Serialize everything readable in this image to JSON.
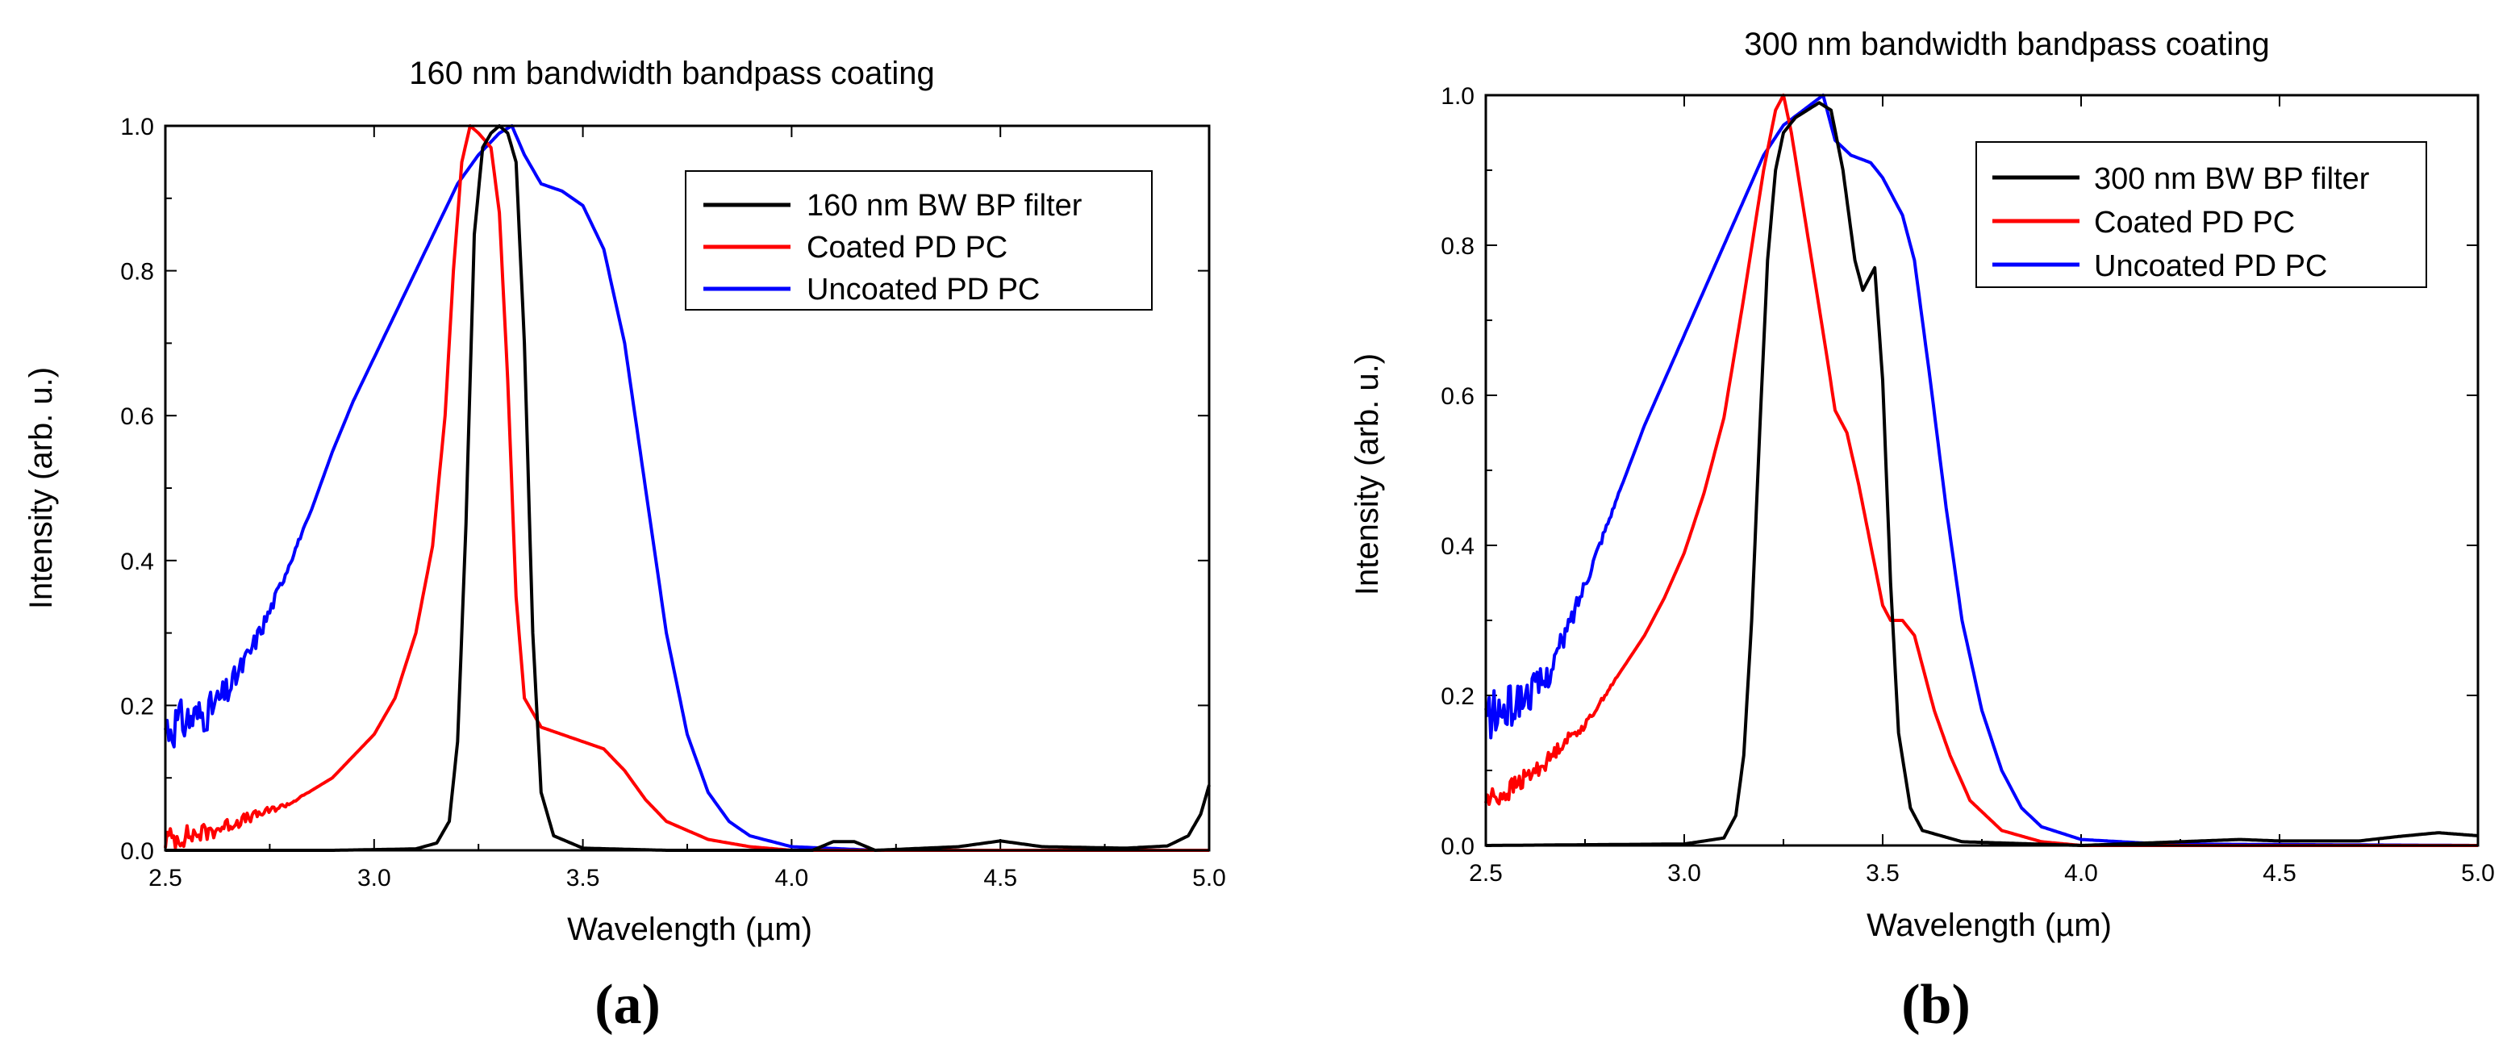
{
  "chart_data": [
    {
      "type": "line",
      "panel_caption": "(a)",
      "title": "160 nm bandwidth bandpass coating",
      "xlabel": "Wavelength (µm)",
      "ylabel": "Intensity (arb. u.)",
      "xlim": [
        2.5,
        5.0
      ],
      "ylim": [
        0.0,
        1.0
      ],
      "x_ticks": [
        "2.5",
        "3.0",
        "3.5",
        "4.0",
        "4.5",
        "5.0"
      ],
      "y_ticks": [
        "0.0",
        "0.2",
        "0.4",
        "0.6",
        "0.8",
        "1.0"
      ],
      "grid": false,
      "legend_position": "top-right",
      "series": [
        {
          "name": "160 nm BW BP filter",
          "color": "#000000",
          "points": [
            [
              2.5,
              0.0
            ],
            [
              2.9,
              0.0
            ],
            [
              3.1,
              0.002
            ],
            [
              3.15,
              0.01
            ],
            [
              3.18,
              0.04
            ],
            [
              3.2,
              0.15
            ],
            [
              3.22,
              0.45
            ],
            [
              3.24,
              0.85
            ],
            [
              3.26,
              0.97
            ],
            [
              3.28,
              0.99
            ],
            [
              3.3,
              1.0
            ],
            [
              3.32,
              0.99
            ],
            [
              3.34,
              0.95
            ],
            [
              3.36,
              0.7
            ],
            [
              3.38,
              0.3
            ],
            [
              3.4,
              0.08
            ],
            [
              3.43,
              0.02
            ],
            [
              3.5,
              0.003
            ],
            [
              3.7,
              0.0
            ],
            [
              4.05,
              0.0
            ],
            [
              4.1,
              0.012
            ],
            [
              4.15,
              0.012
            ],
            [
              4.2,
              0.0
            ],
            [
              4.4,
              0.005
            ],
            [
              4.5,
              0.013
            ],
            [
              4.6,
              0.005
            ],
            [
              4.8,
              0.003
            ],
            [
              4.9,
              0.006
            ],
            [
              4.95,
              0.02
            ],
            [
              4.98,
              0.05
            ],
            [
              5.0,
              0.09
            ]
          ]
        },
        {
          "name": "Coated PD PC",
          "color": "#ff0000",
          "points": [
            [
              2.5,
              0.015
            ],
            [
              2.6,
              0.025
            ],
            [
              2.7,
              0.045
            ],
            [
              2.8,
              0.065
            ],
            [
              2.9,
              0.1
            ],
            [
              3.0,
              0.16
            ],
            [
              3.05,
              0.21
            ],
            [
              3.1,
              0.3
            ],
            [
              3.14,
              0.42
            ],
            [
              3.17,
              0.6
            ],
            [
              3.19,
              0.8
            ],
            [
              3.21,
              0.95
            ],
            [
              3.23,
              1.0
            ],
            [
              3.25,
              0.99
            ],
            [
              3.28,
              0.97
            ],
            [
              3.3,
              0.88
            ],
            [
              3.32,
              0.65
            ],
            [
              3.34,
              0.35
            ],
            [
              3.36,
              0.21
            ],
            [
              3.4,
              0.17
            ],
            [
              3.5,
              0.15
            ],
            [
              3.55,
              0.14
            ],
            [
              3.6,
              0.11
            ],
            [
              3.65,
              0.07
            ],
            [
              3.7,
              0.04
            ],
            [
              3.8,
              0.015
            ],
            [
              3.9,
              0.005
            ],
            [
              4.0,
              0.0
            ],
            [
              5.0,
              0.0
            ]
          ]
        },
        {
          "name": "Uncoated PD PC",
          "color": "#0000ff",
          "points": [
            [
              2.5,
              0.17
            ],
            [
              2.55,
              0.18
            ],
            [
              2.6,
              0.19
            ],
            [
              2.65,
              0.22
            ],
            [
              2.7,
              0.27
            ],
            [
              2.75,
              0.33
            ],
            [
              2.8,
              0.4
            ],
            [
              2.85,
              0.47
            ],
            [
              2.9,
              0.55
            ],
            [
              2.95,
              0.62
            ],
            [
              3.0,
              0.68
            ],
            [
              3.05,
              0.74
            ],
            [
              3.1,
              0.8
            ],
            [
              3.15,
              0.86
            ],
            [
              3.2,
              0.92
            ],
            [
              3.25,
              0.96
            ],
            [
              3.3,
              0.99
            ],
            [
              3.33,
              1.0
            ],
            [
              3.36,
              0.96
            ],
            [
              3.4,
              0.92
            ],
            [
              3.45,
              0.91
            ],
            [
              3.5,
              0.89
            ],
            [
              3.55,
              0.83
            ],
            [
              3.6,
              0.7
            ],
            [
              3.65,
              0.5
            ],
            [
              3.7,
              0.3
            ],
            [
              3.75,
              0.16
            ],
            [
              3.8,
              0.08
            ],
            [
              3.85,
              0.04
            ],
            [
              3.9,
              0.02
            ],
            [
              4.0,
              0.005
            ],
            [
              4.2,
              0.0
            ],
            [
              5.0,
              0.0
            ]
          ]
        }
      ]
    },
    {
      "type": "line",
      "panel_caption": "(b)",
      "title": "300 nm bandwidth bandpass coating",
      "xlabel": "Wavelength (µm)",
      "ylabel": "Intensity (arb. u.)",
      "xlim": [
        2.5,
        5.0
      ],
      "ylim": [
        0.0,
        1.0
      ],
      "x_ticks": [
        "2.5",
        "3.0",
        "3.5",
        "4.0",
        "4.5",
        "5.0"
      ],
      "y_ticks": [
        "0.0",
        "0.2",
        "0.4",
        "0.6",
        "0.8",
        "1.0"
      ],
      "grid": false,
      "legend_position": "top-right",
      "series": [
        {
          "name": "300 nm BW BP filter",
          "color": "#000000",
          "points": [
            [
              2.5,
              0.0
            ],
            [
              3.0,
              0.002
            ],
            [
              3.1,
              0.01
            ],
            [
              3.13,
              0.04
            ],
            [
              3.15,
              0.12
            ],
            [
              3.17,
              0.3
            ],
            [
              3.19,
              0.55
            ],
            [
              3.21,
              0.78
            ],
            [
              3.23,
              0.9
            ],
            [
              3.25,
              0.95
            ],
            [
              3.28,
              0.97
            ],
            [
              3.31,
              0.98
            ],
            [
              3.34,
              0.99
            ],
            [
              3.37,
              0.98
            ],
            [
              3.4,
              0.9
            ],
            [
              3.43,
              0.78
            ],
            [
              3.45,
              0.74
            ],
            [
              3.48,
              0.77
            ],
            [
              3.5,
              0.62
            ],
            [
              3.52,
              0.35
            ],
            [
              3.54,
              0.15
            ],
            [
              3.57,
              0.05
            ],
            [
              3.6,
              0.02
            ],
            [
              3.7,
              0.005
            ],
            [
              4.0,
              0.0
            ],
            [
              4.4,
              0.008
            ],
            [
              4.5,
              0.006
            ],
            [
              4.7,
              0.006
            ],
            [
              4.8,
              0.012
            ],
            [
              4.9,
              0.017
            ],
            [
              5.0,
              0.013
            ]
          ]
        },
        {
          "name": "Coated PD PC",
          "color": "#ff0000",
          "points": [
            [
              2.5,
              0.06
            ],
            [
              2.55,
              0.07
            ],
            [
              2.6,
              0.09
            ],
            [
              2.65,
              0.11
            ],
            [
              2.7,
              0.14
            ],
            [
              2.75,
              0.16
            ],
            [
              2.8,
              0.2
            ],
            [
              2.85,
              0.24
            ],
            [
              2.9,
              0.28
            ],
            [
              2.95,
              0.33
            ],
            [
              3.0,
              0.39
            ],
            [
              3.05,
              0.47
            ],
            [
              3.1,
              0.57
            ],
            [
              3.15,
              0.73
            ],
            [
              3.2,
              0.9
            ],
            [
              3.23,
              0.98
            ],
            [
              3.25,
              1.0
            ],
            [
              3.27,
              0.95
            ],
            [
              3.3,
              0.85
            ],
            [
              3.33,
              0.75
            ],
            [
              3.36,
              0.65
            ],
            [
              3.38,
              0.58
            ],
            [
              3.41,
              0.55
            ],
            [
              3.44,
              0.48
            ],
            [
              3.47,
              0.4
            ],
            [
              3.5,
              0.32
            ],
            [
              3.52,
              0.3
            ],
            [
              3.55,
              0.3
            ],
            [
              3.58,
              0.28
            ],
            [
              3.6,
              0.24
            ],
            [
              3.63,
              0.18
            ],
            [
              3.67,
              0.12
            ],
            [
              3.72,
              0.06
            ],
            [
              3.8,
              0.02
            ],
            [
              3.9,
              0.005
            ],
            [
              4.0,
              0.0
            ],
            [
              5.0,
              0.0
            ]
          ]
        },
        {
          "name": "Uncoated PD PC",
          "color": "#0000ff",
          "points": [
            [
              2.5,
              0.17
            ],
            [
              2.55,
              0.18
            ],
            [
              2.6,
              0.2
            ],
            [
              2.65,
              0.22
            ],
            [
              2.7,
              0.28
            ],
            [
              2.75,
              0.35
            ],
            [
              2.8,
              0.42
            ],
            [
              2.85,
              0.49
            ],
            [
              2.9,
              0.56
            ],
            [
              2.95,
              0.62
            ],
            [
              3.0,
              0.68
            ],
            [
              3.05,
              0.74
            ],
            [
              3.1,
              0.8
            ],
            [
              3.15,
              0.86
            ],
            [
              3.2,
              0.92
            ],
            [
              3.25,
              0.96
            ],
            [
              3.3,
              0.98
            ],
            [
              3.35,
              1.0
            ],
            [
              3.38,
              0.94
            ],
            [
              3.42,
              0.92
            ],
            [
              3.47,
              0.91
            ],
            [
              3.5,
              0.89
            ],
            [
              3.55,
              0.84
            ],
            [
              3.58,
              0.78
            ],
            [
              3.62,
              0.62
            ],
            [
              3.66,
              0.45
            ],
            [
              3.7,
              0.3
            ],
            [
              3.75,
              0.18
            ],
            [
              3.8,
              0.1
            ],
            [
              3.85,
              0.05
            ],
            [
              3.9,
              0.025
            ],
            [
              4.0,
              0.008
            ],
            [
              4.2,
              0.002
            ],
            [
              5.0,
              0.0
            ]
          ]
        }
      ]
    }
  ]
}
